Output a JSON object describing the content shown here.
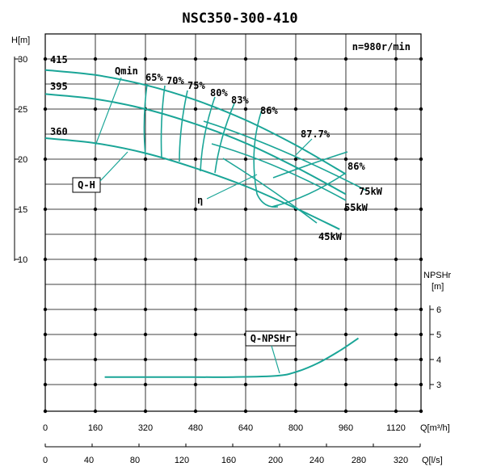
{
  "chart_data": {
    "type": "line",
    "title": "NSC350-300-410",
    "speed": "n=980r/min",
    "y_head": {
      "label": "H[m]",
      "ticks": [
        "30",
        "25",
        "20",
        "15",
        "10"
      ]
    },
    "y_npsh": {
      "label_1": "NPSHr",
      "label_2": "[m]",
      "ticks": [
        "6",
        "5",
        "4",
        "3"
      ]
    },
    "x_flow_m3h": {
      "label": "Q[m³/h]",
      "ticks": [
        "0",
        "160",
        "320",
        "480",
        "640",
        "800",
        "960",
        "1120"
      ]
    },
    "x_flow_ls": {
      "label": "Q[l/s]",
      "ticks": [
        "0",
        "40",
        "80",
        "120",
        "160",
        "200",
        "240",
        "280",
        "320"
      ]
    },
    "diameter_labels": [
      "415",
      "395",
      "360"
    ],
    "qmin_label": "Qmin",
    "efficiency_labels": [
      "65%",
      "70%",
      "75%",
      "80%",
      "83%",
      "86%",
      "87.7%",
      "86%"
    ],
    "power_labels": [
      "75kW",
      "55kW",
      "45kW"
    ],
    "curve_labels": {
      "qh": "Q-H",
      "eta": "η",
      "npsh": "Q-NPSHr"
    },
    "series": [
      {
        "name": "415",
        "x": [
          0,
          160,
          320,
          480,
          640,
          800,
          960
        ],
        "y": [
          28.9,
          28.4,
          27.4,
          25.9,
          23.9,
          21.4,
          18.5
        ]
      },
      {
        "name": "395",
        "x": [
          0,
          160,
          320,
          480,
          640,
          800,
          960
        ],
        "y": [
          26.5,
          26.0,
          25.0,
          23.5,
          21.6,
          19.2,
          16.5
        ]
      },
      {
        "name": "360",
        "x": [
          0,
          160,
          320,
          480,
          640,
          800,
          940
        ],
        "y": [
          22.1,
          21.6,
          20.6,
          19.1,
          17.3,
          15.1,
          13.0
        ]
      },
      {
        "name": "Q-NPSHr",
        "x": [
          190,
          400,
          600,
          740,
          800,
          870,
          940,
          1000
        ],
        "y": [
          3.3,
          3.3,
          3.3,
          3.35,
          3.5,
          3.85,
          4.35,
          4.85
        ]
      }
    ]
  }
}
